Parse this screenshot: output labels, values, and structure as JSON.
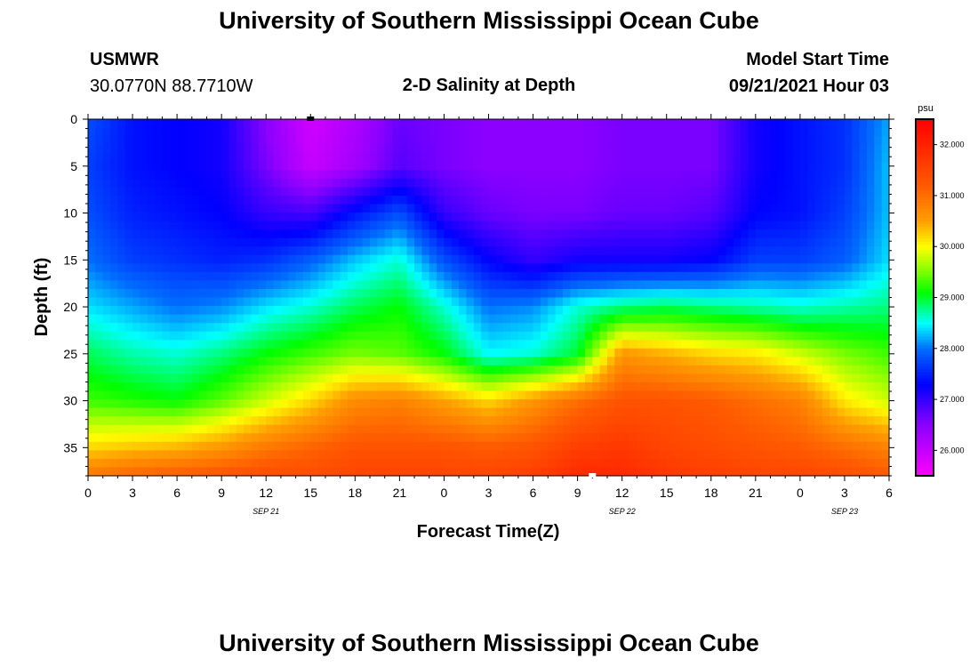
{
  "header": {
    "title": "University of Southern Mississippi Ocean Cube",
    "station": "USMWR",
    "coords": "30.0770N  88.7710W",
    "subtitle": "2-D Salinity at Depth",
    "start_label": "Model Start Time",
    "start_value": "09/21/2021 Hour 03"
  },
  "footer": {
    "title": "University of Southern Mississippi Ocean Cube"
  },
  "chart_data": {
    "type": "heatmap",
    "title": "2-D Salinity at Depth",
    "xlabel": "Forecast Time(Z)",
    "ylabel": "Depth (ft)",
    "x_ticks": [
      "0",
      "3",
      "6",
      "9",
      "12",
      "15",
      "18",
      "21",
      "0",
      "3",
      "6",
      "9",
      "12",
      "15",
      "18",
      "21",
      "0",
      "3",
      "6"
    ],
    "x_range_hours": [
      0,
      54
    ],
    "date_labels": [
      {
        "label": "SEP 21",
        "hour": 12
      },
      {
        "label": "SEP 22",
        "hour": 36
      },
      {
        "label": "SEP 23",
        "hour": 51
      }
    ],
    "y_ticks": [
      0,
      5,
      10,
      15,
      20,
      25,
      30,
      35
    ],
    "y_range_ft": [
      0,
      38
    ],
    "colorbar": {
      "unit": "psu",
      "ticks": [
        "26.000",
        "27.000",
        "28.000",
        "29.000",
        "30.000",
        "31.000",
        "32.000"
      ],
      "range": [
        25.5,
        32.5
      ]
    },
    "salinity_grid": {
      "x_hours": [
        0,
        3,
        6,
        9,
        12,
        15,
        18,
        21,
        24,
        27,
        30,
        33,
        36,
        39,
        42,
        45,
        48,
        51,
        54
      ],
      "depths_ft": [
        0,
        5,
        10,
        15,
        20,
        25,
        30,
        35,
        38
      ],
      "values": [
        [
          27.8,
          27.4,
          27.3,
          27.2,
          26.5,
          25.9,
          26.2,
          26.7,
          26.6,
          26.5,
          26.5,
          26.5,
          26.6,
          26.6,
          26.6,
          27.2,
          27.4,
          27.6,
          28.2
        ],
        [
          27.7,
          27.4,
          27.3,
          27.2,
          26.6,
          26.0,
          26.3,
          26.8,
          26.6,
          26.5,
          26.5,
          26.5,
          26.6,
          26.6,
          26.6,
          27.2,
          27.4,
          27.6,
          28.3
        ],
        [
          27.8,
          27.5,
          27.4,
          27.3,
          27.0,
          26.9,
          27.4,
          27.8,
          27.0,
          26.7,
          26.6,
          26.6,
          26.7,
          26.7,
          26.8,
          27.3,
          27.4,
          27.7,
          28.3
        ],
        [
          28.0,
          27.7,
          27.6,
          27.5,
          27.6,
          27.9,
          28.3,
          28.6,
          27.8,
          27.3,
          27.0,
          27.2,
          27.2,
          27.2,
          27.3,
          27.7,
          27.7,
          27.9,
          28.4
        ],
        [
          28.4,
          28.2,
          28.0,
          28.1,
          28.4,
          28.6,
          28.9,
          29.1,
          28.6,
          28.0,
          28.1,
          28.6,
          28.8,
          28.9,
          28.8,
          28.7,
          28.6,
          28.7,
          28.8
        ],
        [
          28.9,
          28.7,
          28.6,
          28.8,
          29.1,
          29.3,
          29.5,
          29.4,
          29.1,
          28.5,
          28.6,
          29.0,
          30.6,
          30.4,
          30.2,
          30.1,
          29.8,
          29.5,
          29.3
        ],
        [
          29.3,
          29.2,
          29.1,
          29.4,
          29.8,
          30.2,
          30.7,
          30.8,
          30.5,
          30.2,
          30.6,
          31.0,
          31.3,
          31.3,
          31.2,
          31.0,
          30.8,
          30.1,
          29.8
        ],
        [
          30.2,
          30.3,
          30.4,
          30.6,
          30.9,
          31.1,
          31.3,
          31.3,
          31.3,
          31.2,
          31.3,
          31.6,
          31.7,
          31.5,
          31.4,
          31.3,
          31.2,
          31.0,
          30.8
        ],
        [
          30.9,
          31.1,
          31.2,
          31.3,
          31.4,
          31.4,
          31.5,
          31.5,
          31.5,
          31.5,
          31.6,
          31.9,
          31.9,
          31.7,
          31.6,
          31.5,
          31.5,
          31.4,
          31.2
        ]
      ]
    },
    "markers": [
      {
        "hour": 15,
        "depth_ft": 0,
        "color": "#000000"
      },
      {
        "hour": 34,
        "depth_ft": 38,
        "color": "#ffffff"
      }
    ]
  }
}
